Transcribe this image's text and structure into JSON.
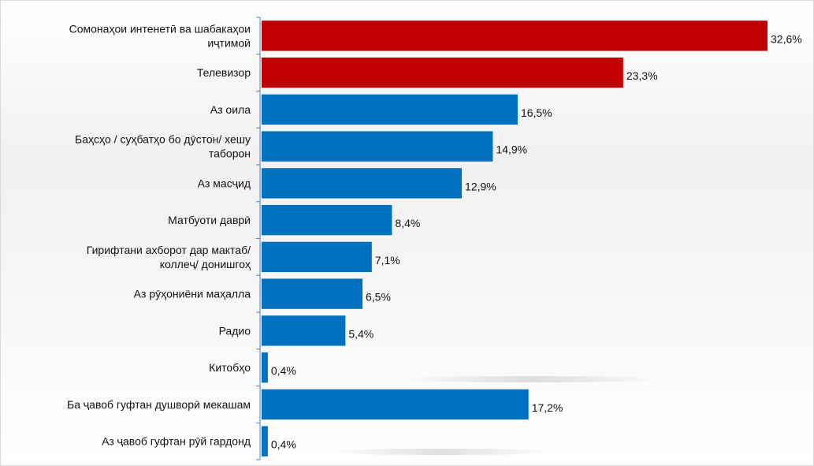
{
  "chart_data": {
    "type": "bar",
    "orientation": "horizontal",
    "categories": [
      [
        "Сомонаҳои интенетӣ ва шабакаҳои",
        "иҷтимоӣ"
      ],
      [
        "Телевизор"
      ],
      [
        "Аз оила"
      ],
      [
        "Баҳсҳо / суҳбатҳо бо дӯстон/ хешу",
        "таборон"
      ],
      [
        "Аз масҷид"
      ],
      [
        "Матбуоти даврӣ"
      ],
      [
        "Гирифтани ахборот дар мактаб/",
        "коллеҷ/ донишгоҳ"
      ],
      [
        "Аз рӯҳониёни маҳалла"
      ],
      [
        "Радио"
      ],
      [
        "Китобҳо"
      ],
      [
        "Ба ҷавоб гуфтан душворӣ мекашам"
      ],
      [
        "Аз ҷавоб гуфтан рӯй гардонд"
      ]
    ],
    "values": [
      32.6,
      23.3,
      16.5,
      14.9,
      12.9,
      8.4,
      7.1,
      6.5,
      5.4,
      0.4,
      17.2,
      0.4
    ],
    "value_labels": [
      "32,6%",
      "23,3%",
      "16,5%",
      "14,9%",
      "12,9%",
      "8,4%",
      "7,1%",
      "6,5%",
      "5,4%",
      "0,4%",
      "17,2%",
      "0,4%"
    ],
    "bar_colors": [
      "#c00000",
      "#c00000",
      "#0070c0",
      "#0070c0",
      "#0070c0",
      "#0070c0",
      "#0070c0",
      "#0070c0",
      "#0070c0",
      "#0070c0",
      "#0070c0",
      "#0070c0"
    ],
    "xlim": [
      0,
      32.6
    ],
    "grid": false,
    "axis_color": "#4f81bd"
  }
}
